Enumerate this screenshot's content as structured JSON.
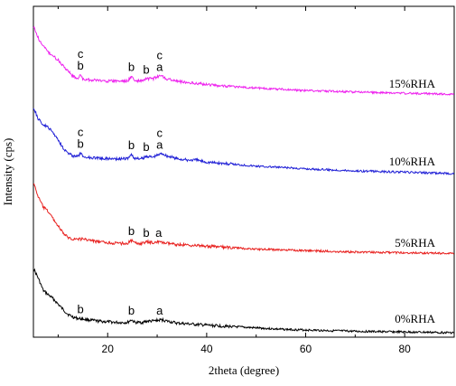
{
  "chart_data": {
    "type": "line",
    "xlabel": "2theta (degree)",
    "ylabel": "Intensity (cps)",
    "xlim": [
      5,
      90
    ],
    "xticks": [
      "20",
      "40",
      "60",
      "80"
    ],
    "xtick_values": [
      20,
      40,
      60,
      80
    ],
    "yticks": "none",
    "grid": false,
    "series": [
      {
        "name": "0%RHA",
        "color": "#000000",
        "points": [
          [
            5,
            0.95
          ],
          [
            6,
            0.8
          ],
          [
            7,
            0.62
          ],
          [
            8,
            0.56
          ],
          [
            9,
            0.5
          ],
          [
            10,
            0.42
          ],
          [
            11,
            0.34
          ],
          [
            12,
            0.27
          ],
          [
            13,
            0.23
          ],
          [
            14,
            0.21
          ],
          [
            15,
            0.2
          ],
          [
            16,
            0.19
          ],
          [
            18,
            0.17
          ],
          [
            20,
            0.16
          ],
          [
            22,
            0.15
          ],
          [
            24,
            0.15
          ],
          [
            24.8,
            0.19
          ],
          [
            25.5,
            0.15
          ],
          [
            27,
            0.15
          ],
          [
            28,
            0.17
          ],
          [
            29,
            0.17
          ],
          [
            30,
            0.18
          ],
          [
            31,
            0.19
          ],
          [
            32,
            0.17
          ],
          [
            34,
            0.14
          ],
          [
            36,
            0.13
          ],
          [
            40,
            0.11
          ],
          [
            45,
            0.09
          ],
          [
            50,
            0.07
          ],
          [
            55,
            0.05
          ],
          [
            60,
            0.04
          ],
          [
            70,
            0.02
          ],
          [
            80,
            0.01
          ],
          [
            90,
            0.0
          ]
        ],
        "peaks": [
          {
            "x": 14.5,
            "labels": [
              "b"
            ]
          },
          {
            "x": 24.8,
            "labels": [
              "b"
            ]
          },
          {
            "x": 30.5,
            "labels": [
              "a"
            ]
          }
        ]
      },
      {
        "name": "5%RHA",
        "color": "#e8211f",
        "points": [
          [
            5,
            1.0
          ],
          [
            6,
            0.8
          ],
          [
            7,
            0.66
          ],
          [
            8,
            0.6
          ],
          [
            9,
            0.5
          ],
          [
            10,
            0.4
          ],
          [
            11,
            0.3
          ],
          [
            12,
            0.24
          ],
          [
            13,
            0.22
          ],
          [
            14,
            0.22
          ],
          [
            15,
            0.22
          ],
          [
            16,
            0.21
          ],
          [
            18,
            0.18
          ],
          [
            20,
            0.17
          ],
          [
            22,
            0.16
          ],
          [
            24,
            0.16
          ],
          [
            24.8,
            0.2
          ],
          [
            25.5,
            0.16
          ],
          [
            27,
            0.16
          ],
          [
            28,
            0.18
          ],
          [
            29,
            0.17
          ],
          [
            30,
            0.18
          ],
          [
            31,
            0.17
          ],
          [
            33,
            0.15
          ],
          [
            35,
            0.14
          ],
          [
            38,
            0.13
          ],
          [
            40,
            0.12
          ],
          [
            45,
            0.1
          ],
          [
            50,
            0.08
          ],
          [
            55,
            0.07
          ],
          [
            60,
            0.06
          ],
          [
            70,
            0.04
          ],
          [
            80,
            0.03
          ],
          [
            90,
            0.02
          ]
        ],
        "peaks": [
          {
            "x": 24.8,
            "labels": [
              "b"
            ]
          },
          {
            "x": 27.8,
            "labels": [
              "b"
            ]
          },
          {
            "x": 30.3,
            "labels": [
              "a"
            ]
          }
        ]
      },
      {
        "name": "10%RHA",
        "color": "#1f1fd6",
        "points": [
          [
            5,
            0.98
          ],
          [
            6,
            0.8
          ],
          [
            7,
            0.72
          ],
          [
            8,
            0.68
          ],
          [
            9,
            0.6
          ],
          [
            10,
            0.5
          ],
          [
            11,
            0.38
          ],
          [
            12,
            0.3
          ],
          [
            13,
            0.26
          ],
          [
            14,
            0.25
          ],
          [
            14.5,
            0.3
          ],
          [
            15,
            0.25
          ],
          [
            16,
            0.24
          ],
          [
            18,
            0.23
          ],
          [
            20,
            0.22
          ],
          [
            22,
            0.22
          ],
          [
            24,
            0.22
          ],
          [
            24.8,
            0.28
          ],
          [
            25.5,
            0.22
          ],
          [
            27,
            0.22
          ],
          [
            28,
            0.26
          ],
          [
            29,
            0.24
          ],
          [
            30,
            0.27
          ],
          [
            31,
            0.3
          ],
          [
            32,
            0.26
          ],
          [
            34,
            0.22
          ],
          [
            36,
            0.2
          ],
          [
            38,
            0.2
          ],
          [
            40,
            0.17
          ],
          [
            45,
            0.14
          ],
          [
            50,
            0.11
          ],
          [
            55,
            0.09
          ],
          [
            60,
            0.07
          ],
          [
            70,
            0.04
          ],
          [
            80,
            0.02
          ],
          [
            90,
            0.0
          ]
        ],
        "peaks": [
          {
            "x": 14.5,
            "labels": [
              "c",
              "b"
            ]
          },
          {
            "x": 24.8,
            "labels": [
              "b"
            ]
          },
          {
            "x": 27.8,
            "labels": [
              "b"
            ]
          },
          {
            "x": 30.5,
            "labels": [
              "c",
              "a"
            ]
          }
        ]
      },
      {
        "name": "15%RHA",
        "color": "#ee22ee",
        "points": [
          [
            5,
            1.0
          ],
          [
            6,
            0.82
          ],
          [
            7,
            0.7
          ],
          [
            8,
            0.62
          ],
          [
            9,
            0.56
          ],
          [
            10,
            0.5
          ],
          [
            11,
            0.42
          ],
          [
            12,
            0.34
          ],
          [
            13,
            0.26
          ],
          [
            14,
            0.23
          ],
          [
            14.5,
            0.28
          ],
          [
            15,
            0.22
          ],
          [
            16,
            0.21
          ],
          [
            18,
            0.2
          ],
          [
            20,
            0.19
          ],
          [
            22,
            0.19
          ],
          [
            24,
            0.19
          ],
          [
            24.8,
            0.26
          ],
          [
            25.5,
            0.19
          ],
          [
            27,
            0.19
          ],
          [
            28,
            0.23
          ],
          [
            29,
            0.22
          ],
          [
            30,
            0.25
          ],
          [
            31,
            0.27
          ],
          [
            32,
            0.22
          ],
          [
            34,
            0.19
          ],
          [
            36,
            0.17
          ],
          [
            38,
            0.16
          ],
          [
            40,
            0.14
          ],
          [
            45,
            0.11
          ],
          [
            50,
            0.09
          ],
          [
            55,
            0.07
          ],
          [
            60,
            0.05
          ],
          [
            70,
            0.03
          ],
          [
            80,
            0.01
          ],
          [
            90,
            0.0
          ]
        ],
        "peaks": [
          {
            "x": 14.5,
            "labels": [
              "c",
              "b"
            ]
          },
          {
            "x": 24.8,
            "labels": [
              "b"
            ]
          },
          {
            "x": 27.8,
            "labels": [
              "b"
            ]
          },
          {
            "x": 30.5,
            "labels": [
              "c",
              "a"
            ]
          }
        ]
      }
    ]
  }
}
